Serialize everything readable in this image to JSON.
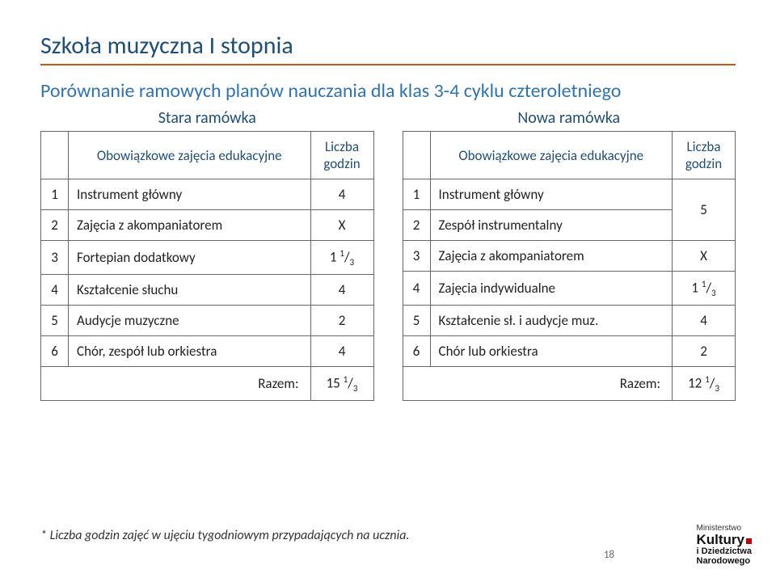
{
  "title": "Szkoła muzyczna I stopnia",
  "subtitle": "Porównanie ramowych planów nauczania dla klas 3-4 cyklu czteroletniego",
  "left": {
    "heading": "Stara ramówka",
    "col_subject": "Obowiązkowe zajęcia edukacyjne",
    "col_hours": "Liczba godzin",
    "rows": [
      {
        "n": "1",
        "name": "Instrument główny",
        "val": "4"
      },
      {
        "n": "2",
        "name": "Zajęcia z akompaniatorem",
        "val": "X"
      },
      {
        "n": "3",
        "name": "Fortepian dodatkowy",
        "val": "1 1/3",
        "frac_int": "1",
        "frac_num": "1",
        "frac_den": "3"
      },
      {
        "n": "4",
        "name": "Kształcenie słuchu",
        "val": "4"
      },
      {
        "n": "5",
        "name": "Audycje muzyczne",
        "val": "2"
      },
      {
        "n": "6",
        "name": "Chór, zespół lub orkiestra",
        "val": "4"
      }
    ],
    "total_label": "Razem:",
    "total_int": "15",
    "total_num": "1",
    "total_den": "3"
  },
  "right": {
    "heading": "Nowa ramówka",
    "col_subject": "Obowiązkowe zajęcia edukacyjne",
    "col_hours": "Liczba godzin",
    "rows12": {
      "n1": "1",
      "name1": "Instrument główny",
      "n2": "2",
      "name2": "Zespół instrumentalny",
      "merged_val": "5"
    },
    "rows": [
      {
        "n": "3",
        "name": "Zajęcia z akompaniatorem",
        "val": "X"
      },
      {
        "n": "4",
        "name": "Zajęcia indywidualne",
        "frac_int": "1",
        "frac_num": "1",
        "frac_den": "3"
      },
      {
        "n": "5",
        "name": "Kształcenie sł. i audycje muz.",
        "val": "4"
      },
      {
        "n": "6",
        "name": "Chór lub orkiestra",
        "val": "2"
      }
    ],
    "total_label": "Razem:",
    "total_int": "12",
    "total_num": "1",
    "total_den": "3"
  },
  "footnote": "* Liczba godzin zajęć w ujęciu tygodniowym przypadających na ucznia.",
  "page_number": "18",
  "logo": {
    "l1": "Ministerstwo",
    "l2": "Kultury",
    "l3a": "i Dziedzictwa",
    "l3b": "Narodowego"
  }
}
